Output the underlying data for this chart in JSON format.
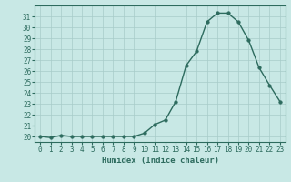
{
  "x": [
    0,
    1,
    2,
    3,
    4,
    5,
    6,
    7,
    8,
    9,
    10,
    11,
    12,
    13,
    14,
    15,
    16,
    17,
    18,
    19,
    20,
    21,
    22,
    23
  ],
  "y": [
    20,
    19.9,
    20.1,
    20,
    20,
    20,
    20,
    20,
    20,
    20,
    20.3,
    21.1,
    21.5,
    23.2,
    26.5,
    27.8,
    30.5,
    31.3,
    31.3,
    30.5,
    28.8,
    26.3,
    24.7,
    23.2
  ],
  "line_color": "#2d6b5e",
  "marker_color": "#2d6b5e",
  "bg_color": "#c8e8e5",
  "grid_color": "#a8ccc9",
  "xlabel": "Humidex (Indice chaleur)",
  "xlim": [
    -0.5,
    23.5
  ],
  "ylim": [
    19.5,
    32
  ],
  "yticks": [
    20,
    21,
    22,
    23,
    24,
    25,
    26,
    27,
    28,
    29,
    30,
    31
  ],
  "xticks": [
    0,
    1,
    2,
    3,
    4,
    5,
    6,
    7,
    8,
    9,
    10,
    11,
    12,
    13,
    14,
    15,
    16,
    17,
    18,
    19,
    20,
    21,
    22,
    23
  ],
  "xlabel_fontsize": 6.5,
  "tick_fontsize": 5.5,
  "line_width": 1.0,
  "marker_size": 2.5
}
